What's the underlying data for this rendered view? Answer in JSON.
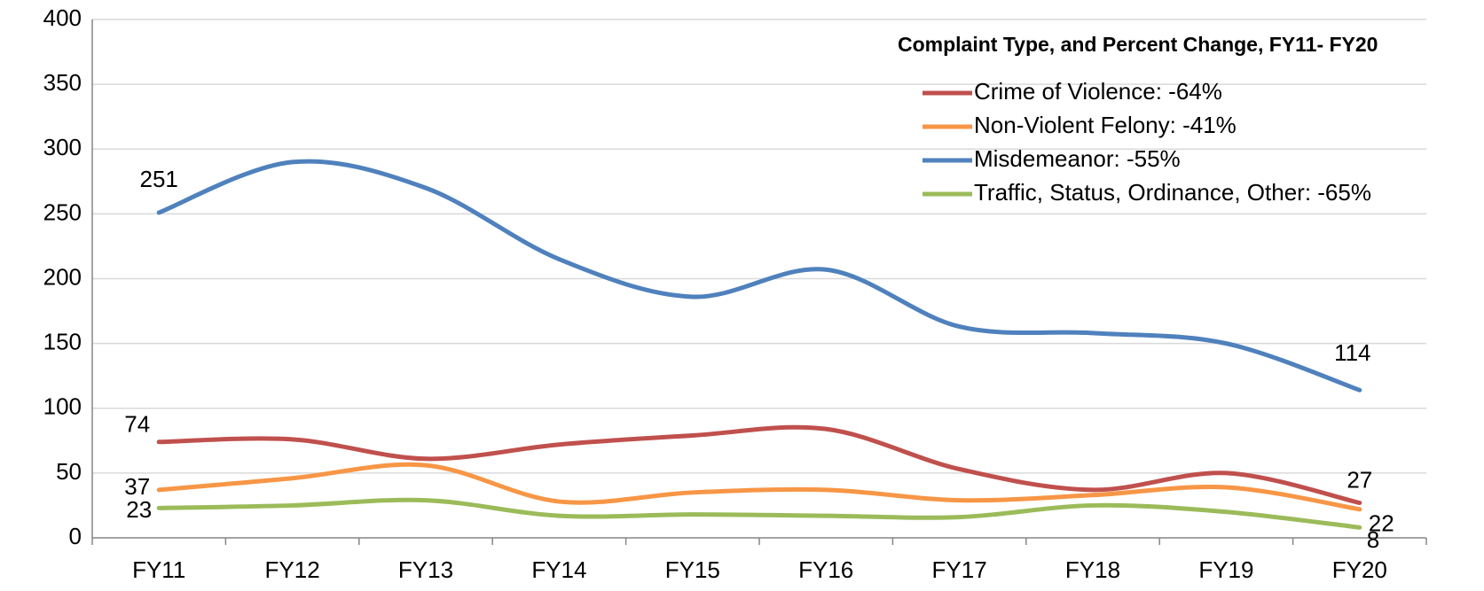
{
  "chart_data": {
    "type": "line",
    "legend_title": "Complaint Type, and Percent Change, FY11- FY20",
    "categories": [
      "FY11",
      "FY12",
      "FY13",
      "FY14",
      "FY15",
      "FY16",
      "FY17",
      "FY18",
      "FY19",
      "FY20"
    ],
    "series": [
      {
        "name": "Crime of Violence:  -64%",
        "color": "#c0504d",
        "values": [
          74,
          76,
          61,
          72,
          79,
          84,
          53,
          37,
          50,
          27
        ]
      },
      {
        "name": "Non-Violent Felony:  -41%",
        "color": "#f79646",
        "values": [
          37,
          46,
          56,
          28,
          35,
          37,
          29,
          33,
          39,
          22
        ]
      },
      {
        "name": "Misdemeanor:  -55%",
        "color": "#4f81bd",
        "values": [
          251,
          290,
          270,
          215,
          186,
          207,
          163,
          158,
          150,
          114
        ]
      },
      {
        "name": "Traffic, Status, Ordinance, Other:  -65%",
        "color": "#9bbb59",
        "values": [
          23,
          25,
          29,
          17,
          18,
          17,
          16,
          25,
          20,
          8
        ]
      }
    ],
    "ylim": [
      0,
      400
    ],
    "yticks": [
      0,
      50,
      100,
      150,
      200,
      250,
      300,
      350,
      400
    ],
    "grid": true,
    "legend": "upper right"
  }
}
